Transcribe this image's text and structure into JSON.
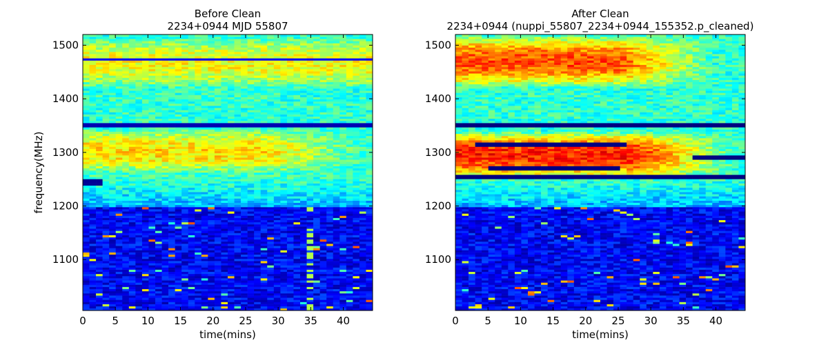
{
  "chart_data": [
    {
      "type": "heatmap",
      "title_line1": "Before Clean",
      "title_line2": "2234+0944 MJD 55807",
      "xlabel": "time(mins)",
      "ylabel": "frequency(MHz)",
      "xlim": [
        0,
        44.5
      ],
      "ylim": [
        1005,
        1520
      ],
      "xticks": [
        0,
        5,
        10,
        15,
        20,
        25,
        30,
        35,
        40
      ],
      "yticks": [
        1100,
        1200,
        1300,
        1400,
        1500
      ],
      "colormap": "jet",
      "value_range": [
        0,
        1
      ],
      "n_time_bins": 44,
      "n_freq_bins": 64,
      "description_features": [
        {
          "feature": "band",
          "freq_mhz": [
            1440,
            1495
          ],
          "time_mins": [
            0,
            44.5
          ],
          "level": 0.62
        },
        {
          "feature": "band",
          "freq_mhz": [
            1280,
            1325
          ],
          "time_mins": [
            0,
            28
          ],
          "level": 0.66
        },
        {
          "feature": "rfi_line",
          "freq_mhz": 1350,
          "level": 0.05
        },
        {
          "feature": "rfi_line",
          "freq_mhz": 1474,
          "level": 0.12
        },
        {
          "feature": "rfi_block",
          "freq_mhz": [
            1240,
            1250
          ],
          "time_mins": [
            0,
            3
          ],
          "level": 0.02
        },
        {
          "feature": "rfi_column",
          "time_mins": 35,
          "freq_mhz": [
            1005,
            1200
          ],
          "level": 0.55
        },
        {
          "feature": "low_band",
          "freq_mhz": [
            1005,
            1200
          ],
          "level": 0.12
        }
      ]
    },
    {
      "type": "heatmap",
      "title_line1": "After Clean",
      "title_line2": "2234+0944  (nuppi_55807_2234+0944_155352.p_cleaned)",
      "xlabel": "time(mins)",
      "ylabel": "",
      "xlim": [
        0,
        44.5
      ],
      "ylim": [
        1005,
        1520
      ],
      "xticks": [
        0,
        5,
        10,
        15,
        20,
        25,
        30,
        35,
        40
      ],
      "yticks": [
        1100,
        1200,
        1300,
        1400,
        1500
      ],
      "colormap": "jet",
      "value_range": [
        0,
        1
      ],
      "n_time_bins": 44,
      "n_freq_bins": 64,
      "description_features": [
        {
          "feature": "band",
          "freq_mhz": [
            1440,
            1500
          ],
          "time_mins": [
            0,
            25
          ],
          "level": 0.8
        },
        {
          "feature": "band",
          "freq_mhz": [
            1270,
            1320
          ],
          "time_mins": [
            0,
            28
          ],
          "level": 0.85
        },
        {
          "feature": "rfi_line",
          "freq_mhz": 1350,
          "level": 0.0
        },
        {
          "feature": "rfi_line",
          "freq_mhz": 1254,
          "level": 0.0
        },
        {
          "feature": "rfi_segment",
          "freq_mhz": 1314,
          "time_mins": [
            3,
            26
          ],
          "level": 0.0
        },
        {
          "feature": "rfi_segment",
          "freq_mhz": 1272,
          "time_mins": [
            5,
            25.5
          ],
          "level": 0.0
        },
        {
          "feature": "rfi_segment",
          "freq_mhz": 1291,
          "time_mins": [
            36.5,
            44.5
          ],
          "level": 0.0
        },
        {
          "feature": "low_band",
          "freq_mhz": [
            1005,
            1200
          ],
          "level": 0.1
        }
      ]
    }
  ]
}
